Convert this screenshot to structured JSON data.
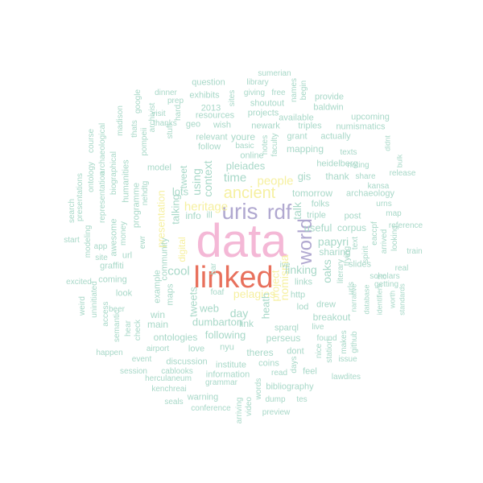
{
  "words": [
    {
      "t": "data",
      "c": "c-big"
    },
    {
      "t": "linked",
      "c": "c-red"
    },
    {
      "t": "uris",
      "c": "c-lav"
    },
    {
      "t": "rdf",
      "c": "c-lav"
    },
    {
      "t": "ancient",
      "c": "c-yel"
    },
    {
      "t": "world",
      "c": "c-lav"
    },
    {
      "t": "people",
      "c": "c-yel"
    },
    {
      "t": "pelagios",
      "c": "c-yel"
    },
    {
      "t": "heritage",
      "c": "c-yel"
    },
    {
      "t": "nomisma",
      "c": "c-yel"
    },
    {
      "t": "time",
      "c": "c-grn"
    },
    {
      "t": "pleiades",
      "c": "c-grn"
    },
    {
      "t": "context",
      "c": "c-grn"
    },
    {
      "t": "using",
      "c": "c-grn"
    },
    {
      "t": "talking",
      "c": "c-grn"
    },
    {
      "t": "tweet",
      "c": "c-grn"
    },
    {
      "t": "heath",
      "c": "c-grn"
    },
    {
      "t": "linking",
      "c": "c-grn"
    },
    {
      "t": "talk",
      "c": "c-grn"
    },
    {
      "t": "papyri",
      "c": "c-grn"
    },
    {
      "t": "tomorrow",
      "c": "c-grn"
    },
    {
      "t": "useful",
      "c": "c-grn"
    },
    {
      "t": "project",
      "c": "c-yel"
    },
    {
      "t": "cool",
      "c": "c-grn"
    },
    {
      "t": "lots",
      "c": "c-grn"
    },
    {
      "t": "tweets",
      "c": "c-grn"
    },
    {
      "t": "web",
      "c": "c-grn"
    },
    {
      "t": "day",
      "c": "c-grn"
    },
    {
      "t": "dumbarton",
      "c": "c-grn"
    },
    {
      "t": "following",
      "c": "c-grn"
    },
    {
      "t": "link",
      "c": "c-grn"
    },
    {
      "t": "gis",
      "c": "c-grn"
    },
    {
      "t": "folks",
      "c": "c-grn"
    },
    {
      "t": "triple",
      "c": "c-grn"
    },
    {
      "t": "oaks",
      "c": "c-grn"
    },
    {
      "t": "sharing",
      "c": "c-grn"
    },
    {
      "t": "corpus",
      "c": "c-grn"
    },
    {
      "t": "slides",
      "c": "c-grn"
    },
    {
      "t": "presentation",
      "c": "c-yel"
    },
    {
      "t": "digital",
      "c": "c-yel"
    },
    {
      "t": "perseus",
      "c": "c-grn"
    },
    {
      "t": "sparql",
      "c": "c-grn"
    },
    {
      "t": "lod",
      "c": "c-grn"
    },
    {
      "t": "drew",
      "c": "c-grn"
    },
    {
      "t": "breakout",
      "c": "c-grn"
    },
    {
      "t": "links",
      "c": "c-grn"
    },
    {
      "t": "http",
      "c": "c-grn"
    },
    {
      "t": "ive",
      "c": "c-grn"
    },
    {
      "t": "mapping",
      "c": "c-grn"
    },
    {
      "t": "thank",
      "c": "c-grn"
    },
    {
      "t": "post",
      "c": "c-grn"
    },
    {
      "t": "heidelberg",
      "c": "c-grn"
    },
    {
      "t": "archaeology",
      "c": "c-grn"
    },
    {
      "t": "noting",
      "c": "c-grn"
    },
    {
      "t": "texts",
      "c": "c-grn"
    },
    {
      "t": "share",
      "c": "c-grn"
    },
    {
      "t": "release",
      "c": "c-grn"
    },
    {
      "t": "kansa",
      "c": "c-grn"
    },
    {
      "t": "urns",
      "c": "c-grn"
    },
    {
      "t": "map",
      "c": "c-grn"
    },
    {
      "t": "reference",
      "c": "c-grn"
    },
    {
      "t": "train",
      "c": "c-grn"
    },
    {
      "t": "real",
      "c": "c-grn"
    },
    {
      "t": "scholars",
      "c": "c-grn"
    },
    {
      "t": "getting",
      "c": "c-grn"
    },
    {
      "t": "worth",
      "c": "c-grn"
    },
    {
      "t": "standards",
      "c": "c-grn"
    },
    {
      "t": "etc",
      "c": "c-grn"
    },
    {
      "t": "identifiers",
      "c": "c-grn"
    },
    {
      "t": "database",
      "c": "c-grn"
    },
    {
      "t": "narrative",
      "c": "c-grn"
    },
    {
      "t": "spirit",
      "c": "c-grn"
    },
    {
      "t": "arrived",
      "c": "c-grn"
    },
    {
      "t": "eaccpf",
      "c": "c-grn"
    },
    {
      "t": "looking",
      "c": "c-grn"
    },
    {
      "t": "issue",
      "c": "c-grn"
    },
    {
      "t": "github",
      "c": "c-grn"
    },
    {
      "t": "makes",
      "c": "c-grn"
    },
    {
      "t": "found",
      "c": "c-grn"
    },
    {
      "t": "station",
      "c": "c-grn"
    },
    {
      "t": "literary",
      "c": "c-grn"
    },
    {
      "t": "urls",
      "c": "c-grn"
    },
    {
      "t": "text",
      "c": "c-grn"
    },
    {
      "t": "trying",
      "c": "c-grn"
    },
    {
      "t": "live",
      "c": "c-grn"
    },
    {
      "t": "nice",
      "c": "c-grn"
    },
    {
      "t": "lawdites",
      "c": "c-grn"
    },
    {
      "t": "feel",
      "c": "c-grn"
    },
    {
      "t": "days",
      "c": "c-grn"
    },
    {
      "t": "dont",
      "c": "c-grn"
    },
    {
      "t": "read",
      "c": "c-grn"
    },
    {
      "t": "theres",
      "c": "c-grn"
    },
    {
      "t": "coins",
      "c": "c-grn"
    },
    {
      "t": "institute",
      "c": "c-grn"
    },
    {
      "t": "information",
      "c": "c-grn"
    },
    {
      "t": "grammar",
      "c": "c-grn"
    },
    {
      "t": "bibliography",
      "c": "c-grn"
    },
    {
      "t": "dump",
      "c": "c-grn"
    },
    {
      "t": "tes",
      "c": "c-grn"
    },
    {
      "t": "preview",
      "c": "c-grn"
    },
    {
      "t": "words",
      "c": "c-grn"
    },
    {
      "t": "video",
      "c": "c-grn"
    },
    {
      "t": "arriving",
      "c": "c-grn"
    },
    {
      "t": "conference",
      "c": "c-grn"
    },
    {
      "t": "warning",
      "c": "c-grn"
    },
    {
      "t": "seals",
      "c": "c-grn"
    },
    {
      "t": "kenchreai",
      "c": "c-grn"
    },
    {
      "t": "herculaneum",
      "c": "c-grn"
    },
    {
      "t": "cablooks",
      "c": "c-grn"
    },
    {
      "t": "session",
      "c": "c-grn"
    },
    {
      "t": "event",
      "c": "c-grn"
    },
    {
      "t": "discussion",
      "c": "c-grn"
    },
    {
      "t": "airport",
      "c": "c-grn"
    },
    {
      "t": "happen",
      "c": "c-grn"
    },
    {
      "t": "love",
      "c": "c-grn"
    },
    {
      "t": "nyu",
      "c": "c-grn"
    },
    {
      "t": "ontologies",
      "c": "c-grn"
    },
    {
      "t": "main",
      "c": "c-grn"
    },
    {
      "t": "win",
      "c": "c-grn"
    },
    {
      "t": "beer",
      "c": "c-grn"
    },
    {
      "t": "check",
      "c": "c-grn"
    },
    {
      "t": "hear",
      "c": "c-grn"
    },
    {
      "t": "semantic",
      "c": "c-grn"
    },
    {
      "t": "access",
      "c": "c-grn"
    },
    {
      "t": "weird",
      "c": "c-grn"
    },
    {
      "t": "uninitiated",
      "c": "c-grn"
    },
    {
      "t": "excited",
      "c": "c-grn"
    },
    {
      "t": "coming",
      "c": "c-grn"
    },
    {
      "t": "look",
      "c": "c-grn"
    },
    {
      "t": "graffiti",
      "c": "c-grn"
    },
    {
      "t": "url",
      "c": "c-grn"
    },
    {
      "t": "site",
      "c": "c-grn"
    },
    {
      "t": "app",
      "c": "c-grn"
    },
    {
      "t": "start",
      "c": "c-grn"
    },
    {
      "t": "modeling",
      "c": "c-grn"
    },
    {
      "t": "awesome",
      "c": "c-grn"
    },
    {
      "t": "money",
      "c": "c-grn"
    },
    {
      "t": "representation",
      "c": "c-grn"
    },
    {
      "t": "ontology",
      "c": "c-grn"
    },
    {
      "t": "presentations",
      "c": "c-grn"
    },
    {
      "t": "search",
      "c": "c-grn"
    },
    {
      "t": "biographical",
      "c": "c-grn"
    },
    {
      "t": "archaeological",
      "c": "c-grn"
    },
    {
      "t": "course",
      "c": "c-grn"
    },
    {
      "t": "madison",
      "c": "c-grn"
    },
    {
      "t": "humanities",
      "c": "c-grn"
    },
    {
      "t": "programme",
      "c": "c-grn"
    },
    {
      "t": "nehdtg",
      "c": "c-grn"
    },
    {
      "t": "thats",
      "c": "c-grn"
    },
    {
      "t": "pompeii",
      "c": "c-grn"
    },
    {
      "t": "google",
      "c": "c-grn"
    },
    {
      "t": "archivist",
      "c": "c-grn"
    },
    {
      "t": "visit",
      "c": "c-grn"
    },
    {
      "t": "thanks",
      "c": "c-grn"
    },
    {
      "t": "model",
      "c": "c-grn"
    },
    {
      "t": "stuff",
      "c": "c-grn"
    },
    {
      "t": "hard",
      "c": "c-grn"
    },
    {
      "t": "prep",
      "c": "c-grn"
    },
    {
      "t": "dinner",
      "c": "c-grn"
    },
    {
      "t": "exhibits",
      "c": "c-grn"
    },
    {
      "t": "question",
      "c": "c-grn"
    },
    {
      "t": "2013",
      "c": "c-grn"
    },
    {
      "t": "geo",
      "c": "c-grn"
    },
    {
      "t": "resources",
      "c": "c-grn"
    },
    {
      "t": "wish",
      "c": "c-grn"
    },
    {
      "t": "relevant",
      "c": "c-grn"
    },
    {
      "t": "youre",
      "c": "c-grn"
    },
    {
      "t": "follow",
      "c": "c-grn"
    },
    {
      "t": "online",
      "c": "c-grn"
    },
    {
      "t": "info",
      "c": "c-grn"
    },
    {
      "t": "ill",
      "c": "c-grn"
    },
    {
      "t": "basic",
      "c": "c-grn"
    },
    {
      "t": "newark",
      "c": "c-grn"
    },
    {
      "t": "notes",
      "c": "c-grn"
    },
    {
      "t": "faculty",
      "c": "c-grn"
    },
    {
      "t": "projects",
      "c": "c-grn"
    },
    {
      "t": "shoutout",
      "c": "c-grn"
    },
    {
      "t": "giving",
      "c": "c-grn"
    },
    {
      "t": "sites",
      "c": "c-grn"
    },
    {
      "t": "library",
      "c": "c-grn"
    },
    {
      "t": "sumerian",
      "c": "c-grn"
    },
    {
      "t": "free",
      "c": "c-grn"
    },
    {
      "t": "names",
      "c": "c-grn"
    },
    {
      "t": "begin",
      "c": "c-grn"
    },
    {
      "t": "provide",
      "c": "c-grn"
    },
    {
      "t": "baldwin",
      "c": "c-grn"
    },
    {
      "t": "available",
      "c": "c-grn"
    },
    {
      "t": "triples",
      "c": "c-grn"
    },
    {
      "t": "grant",
      "c": "c-grn"
    },
    {
      "t": "actually",
      "c": "c-grn"
    },
    {
      "t": "upcoming",
      "c": "c-grn"
    },
    {
      "t": "numismatics",
      "c": "c-grn"
    },
    {
      "t": "didnt",
      "c": "c-grn"
    },
    {
      "t": "bulk",
      "c": "c-grn"
    },
    {
      "t": "foaf",
      "c": "c-grn"
    },
    {
      "t": "bar",
      "c": "c-grn"
    },
    {
      "t": "ewr",
      "c": "c-grn"
    },
    {
      "t": "community",
      "c": "c-grn"
    },
    {
      "t": "example",
      "c": "c-grn"
    },
    {
      "t": "maps",
      "c": "c-grn"
    }
  ]
}
